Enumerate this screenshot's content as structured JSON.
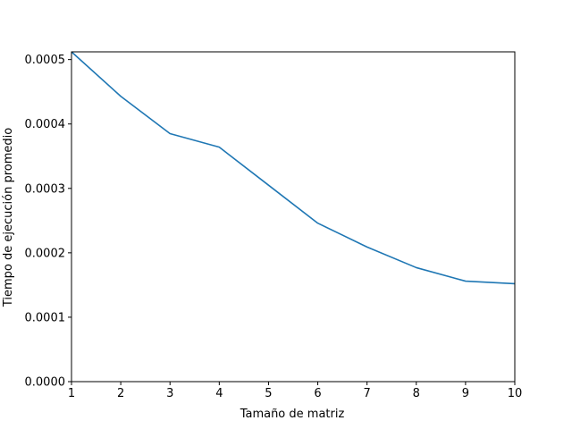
{
  "chart_data": {
    "type": "line",
    "title": "",
    "xlabel": "Tamaño de matriz",
    "ylabel": "Tiempo de ejecución promedio",
    "xlim": [
      1,
      10
    ],
    "ylim": [
      0,
      0.000512
    ],
    "grid": false,
    "x_ticks": [
      1,
      2,
      3,
      4,
      5,
      6,
      7,
      8,
      9,
      10
    ],
    "x_tick_labels": [
      "1",
      "2",
      "3",
      "4",
      "5",
      "6",
      "7",
      "8",
      "9",
      "10"
    ],
    "y_ticks": [
      0,
      0.0001,
      0.0002,
      0.0003,
      0.0004,
      0.0005
    ],
    "y_tick_labels": [
      "0.0000",
      "0.0001",
      "0.0002",
      "0.0003",
      "0.0004",
      "0.0005"
    ],
    "series": [
      {
        "color": "#1f77b4",
        "x": [
          1,
          2,
          3,
          4,
          5,
          6,
          7,
          8,
          9,
          10
        ],
        "y": [
          0.000512,
          0.000443,
          0.000385,
          0.000364,
          0.000305,
          0.000246,
          0.000209,
          0.000177,
          0.000156,
          0.000152
        ]
      }
    ]
  }
}
